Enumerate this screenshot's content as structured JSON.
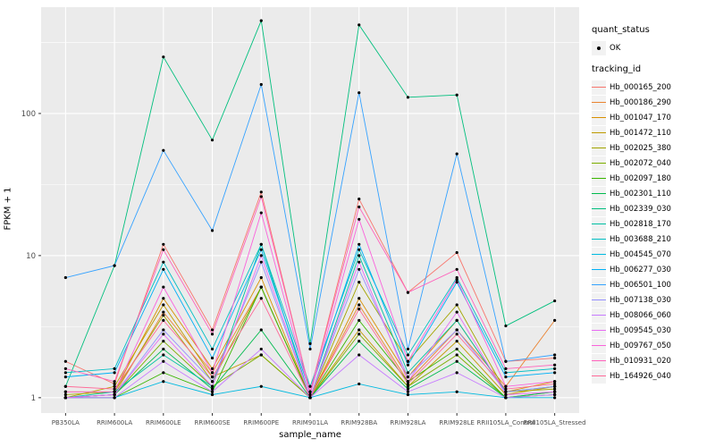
{
  "chart_data": {
    "type": "line",
    "title": "",
    "xlabel": "sample_name",
    "ylabel": "FPKM + 1",
    "y_scale": "log10",
    "y_ticks": [
      1,
      10,
      100
    ],
    "minor_ticks": [
      3.1623,
      31.623,
      316.23
    ],
    "ylim": [
      0.78,
      560
    ],
    "grid": true,
    "panel_bg": "#EBEBEB",
    "grid_color": "#FFFFFF",
    "point_color": "#000000",
    "point_shape": "circle",
    "legend_position": "right",
    "categories": [
      "PB350LA",
      "RRIM600LA",
      "RRIM600LE",
      "RRIM600SE",
      "RRIM600PE",
      "RRIM901LA",
      "RRIM928BA",
      "RRIM928LA",
      "RRIM928LE",
      "RRII105LA_Control",
      "RRII105LA_Stressed"
    ],
    "series": [
      {
        "name": "Hb_000165_200",
        "color": "#F8766D",
        "values": [
          1.8,
          1.25,
          12,
          3.0,
          28,
          1.1,
          25,
          5.5,
          10.5,
          1.8,
          1.9
        ]
      },
      {
        "name": "Hb_000186_290",
        "color": "#EA8331",
        "values": [
          1.0,
          1.05,
          4.0,
          1.5,
          6.0,
          1.0,
          4.5,
          1.3,
          3.0,
          1.2,
          3.5
        ]
      },
      {
        "name": "Hb_001047_170",
        "color": "#D89000",
        "values": [
          1.1,
          1.1,
          5.0,
          1.6,
          7.0,
          1.0,
          5.0,
          1.4,
          3.5,
          1.1,
          1.3
        ]
      },
      {
        "name": "Hb_001472_110",
        "color": "#C09B00",
        "values": [
          1.0,
          1.2,
          4.5,
          1.4,
          2.0,
          1.0,
          3.0,
          1.2,
          2.5,
          1.05,
          1.2
        ]
      },
      {
        "name": "Hb_002025_380",
        "color": "#A3A500",
        "values": [
          1.05,
          1.1,
          3.8,
          1.3,
          6.0,
          1.0,
          6.5,
          1.8,
          4.5,
          1.1,
          1.15
        ]
      },
      {
        "name": "Hb_002072_040",
        "color": "#7CAE00",
        "values": [
          1.0,
          1.05,
          2.5,
          1.2,
          2.0,
          1.0,
          2.8,
          1.2,
          2.0,
          1.0,
          1.1
        ]
      },
      {
        "name": "Hb_002097_180",
        "color": "#39B600",
        "values": [
          1.0,
          1.0,
          1.5,
          1.1,
          6.0,
          1.0,
          3.5,
          1.3,
          2.2,
          1.0,
          1.05
        ]
      },
      {
        "name": "Hb_002301_110",
        "color": "#00BB4E",
        "values": [
          1.0,
          1.05,
          2.2,
          1.15,
          3.0,
          1.0,
          2.5,
          1.15,
          1.8,
          1.0,
          1.1
        ]
      },
      {
        "name": "Hb_002339_030",
        "color": "#00BF7D",
        "values": [
          1.2,
          8.5,
          250,
          65,
          450,
          2.4,
          420,
          130,
          135,
          3.2,
          4.8
        ]
      },
      {
        "name": "Hb_002818_170",
        "color": "#00C1A3",
        "values": [
          1.0,
          1.1,
          2.0,
          1.2,
          12,
          1.0,
          10,
          1.5,
          3.5,
          1.1,
          1.2
        ]
      },
      {
        "name": "Hb_003688_210",
        "color": "#00BFC4",
        "values": [
          1.5,
          1.6,
          9.0,
          2.2,
          12,
          1.2,
          11,
          2.0,
          7.0,
          1.5,
          1.6
        ]
      },
      {
        "name": "Hb_004545_070",
        "color": "#00BAE0",
        "values": [
          1.0,
          1.0,
          1.3,
          1.05,
          1.2,
          1.0,
          1.25,
          1.05,
          1.1,
          1.0,
          1.0
        ]
      },
      {
        "name": "Hb_006277_030",
        "color": "#00B0F6",
        "values": [
          1.4,
          1.5,
          8.0,
          1.9,
          11,
          1.1,
          12,
          1.7,
          6.5,
          1.4,
          1.5
        ]
      },
      {
        "name": "Hb_006501_100",
        "color": "#35A2FF",
        "values": [
          7.0,
          8.5,
          55,
          15,
          160,
          2.2,
          140,
          2.2,
          52,
          1.8,
          2.0
        ]
      },
      {
        "name": "Hb_007138_030",
        "color": "#9590FF",
        "values": [
          1.0,
          1.05,
          3.0,
          1.3,
          9.0,
          1.0,
          8.0,
          1.4,
          3.0,
          1.1,
          1.2
        ]
      },
      {
        "name": "Hb_008066_060",
        "color": "#C77CFF",
        "values": [
          1.0,
          1.0,
          1.8,
          1.1,
          2.2,
          1.0,
          2.0,
          1.1,
          1.5,
          1.0,
          1.05
        ]
      },
      {
        "name": "Hb_009545_030",
        "color": "#E76BF3",
        "values": [
          1.0,
          1.05,
          2.8,
          1.2,
          10,
          1.0,
          9.0,
          1.3,
          4.0,
          1.05,
          1.1
        ]
      },
      {
        "name": "Hb_009767_050",
        "color": "#FA62DB",
        "values": [
          1.1,
          1.1,
          6.0,
          1.5,
          20,
          1.05,
          18,
          1.8,
          6.8,
          1.2,
          1.3
        ]
      },
      {
        "name": "Hb_010931_020",
        "color": "#FF62BC",
        "values": [
          1.6,
          1.3,
          11,
          2.8,
          26,
          1.1,
          22,
          5.5,
          8.0,
          1.6,
          1.7
        ]
      },
      {
        "name": "Hb_164926_040",
        "color": "#FF6A98",
        "values": [
          1.2,
          1.15,
          3.5,
          1.4,
          5.0,
          1.0,
          4.2,
          1.25,
          2.8,
          1.15,
          1.25
        ]
      }
    ],
    "legend": {
      "quant_status_title": "quant_status",
      "quant_status_items": [
        {
          "label": "OK",
          "shape": "point"
        }
      ],
      "tracking_id_title": "tracking_id"
    }
  }
}
